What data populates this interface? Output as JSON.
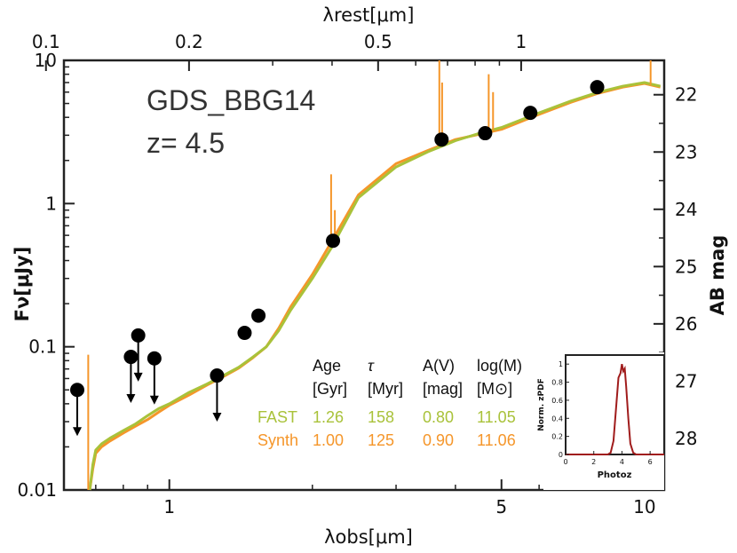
{
  "colors": {
    "fast": "#a9c23a",
    "synth": "#f5962a",
    "points": "#000000",
    "pdf": "#a01c1c",
    "frame": "#222222"
  },
  "main": {
    "name_label": "GDS_BBG14",
    "redshift_label": "z= 4.5"
  },
  "chart_data": [
    {
      "type": "line",
      "title": "",
      "xlabel": "λobs[μm]",
      "ylabel": "Fν[μJy]",
      "top_xlabel": "λrest[μm]",
      "right_ylabel": "AB mag",
      "xscale": "log",
      "yscale": "log",
      "xlim": [
        0.6,
        11
      ],
      "ylim": [
        0.01,
        10
      ],
      "x_ticks": [
        {
          "v": 1,
          "label": "1"
        },
        {
          "v": 5,
          "label": "5"
        },
        {
          "v": 10,
          "label": "10"
        }
      ],
      "y_ticks": [
        {
          "v": 0.01,
          "label": "0.01"
        },
        {
          "v": 0.1,
          "label": "0.1"
        },
        {
          "v": 1,
          "label": "1"
        },
        {
          "v": 10,
          "label": "10"
        }
      ],
      "top_ticks": [
        {
          "v": 0.1,
          "label": "0.1"
        },
        {
          "v": 0.2,
          "label": "0.2"
        },
        {
          "v": 0.5,
          "label": "0.5"
        },
        {
          "v": 1,
          "label": "1"
        }
      ],
      "right_ticks": [
        {
          "v": 22,
          "label": "22"
        },
        {
          "v": 23,
          "label": "23"
        },
        {
          "v": 24,
          "label": "24"
        },
        {
          "v": 25,
          "label": "25"
        },
        {
          "v": 26,
          "label": "26"
        },
        {
          "v": 27,
          "label": "27"
        },
        {
          "v": 28,
          "label": "28"
        }
      ],
      "rest_factor": 5.5,
      "series": [
        {
          "name": "FAST",
          "x": [
            0.68,
            0.69,
            0.7,
            0.72,
            0.75,
            0.8,
            0.85,
            0.9,
            0.95,
            1.0,
            1.1,
            1.2,
            1.3,
            1.4,
            1.5,
            1.6,
            1.7,
            1.8,
            2.0,
            2.2,
            2.5,
            3.0,
            3.5,
            4.0,
            4.5,
            5.0,
            6.0,
            7.0,
            8.0,
            9.0,
            10.0,
            10.8
          ],
          "y": [
            0.01,
            0.015,
            0.019,
            0.021,
            0.023,
            0.026,
            0.029,
            0.033,
            0.037,
            0.04,
            0.048,
            0.055,
            0.063,
            0.072,
            0.085,
            0.1,
            0.13,
            0.18,
            0.3,
            0.5,
            1.1,
            1.8,
            2.3,
            2.75,
            3.1,
            3.4,
            4.3,
            5.2,
            6.0,
            6.6,
            7.0,
            6.6
          ]
        },
        {
          "name": "Synth",
          "x": [
            0.68,
            0.69,
            0.7,
            0.72,
            0.75,
            0.8,
            0.85,
            0.9,
            0.95,
            1.0,
            1.1,
            1.2,
            1.3,
            1.4,
            1.5,
            1.6,
            1.7,
            1.8,
            2.0,
            2.2,
            2.5,
            3.0,
            3.5,
            4.0,
            4.5,
            5.0,
            6.0,
            7.0,
            8.0,
            9.0,
            10.0,
            10.8
          ],
          "y": [
            0.01,
            0.014,
            0.018,
            0.02,
            0.022,
            0.025,
            0.028,
            0.031,
            0.035,
            0.039,
            0.046,
            0.054,
            0.062,
            0.071,
            0.084,
            0.1,
            0.135,
            0.19,
            0.32,
            0.55,
            1.15,
            1.9,
            2.35,
            2.8,
            3.05,
            3.3,
            4.2,
            5.1,
            5.9,
            6.5,
            6.9,
            6.5
          ]
        }
      ],
      "synth_lines": [
        {
          "x": 0.675,
          "peak": 0.088
        },
        {
          "x": 2.19,
          "peak": 1.6
        },
        {
          "x": 2.23,
          "peak": 0.9
        },
        {
          "x": 3.7,
          "peak": 10
        },
        {
          "x": 3.75,
          "peak": 7
        },
        {
          "x": 4.7,
          "peak": 8
        },
        {
          "x": 4.8,
          "peak": 6
        },
        {
          "x": 10.3,
          "peak": 10
        }
      ],
      "detections": [
        {
          "x": 1.44,
          "y": 0.125
        },
        {
          "x": 1.54,
          "y": 0.165
        },
        {
          "x": 2.21,
          "y": 0.55
        },
        {
          "x": 3.74,
          "y": 2.8
        },
        {
          "x": 4.62,
          "y": 3.1
        },
        {
          "x": 5.75,
          "y": 4.3
        },
        {
          "x": 7.95,
          "y": 6.5
        }
      ],
      "upper_limits": [
        {
          "x": 0.64,
          "y": 0.05
        },
        {
          "x": 0.83,
          "y": 0.085
        },
        {
          "x": 0.86,
          "y": 0.12
        },
        {
          "x": 0.93,
          "y": 0.083
        },
        {
          "x": 1.26,
          "y": 0.063
        }
      ],
      "legend_table": {
        "headers": [
          "Age",
          "τ",
          "A(V)",
          "log(M)"
        ],
        "units": [
          "[Gyr]",
          "[Myr]",
          "[mag]",
          "[M⊙]"
        ],
        "rows": [
          {
            "label": "FAST",
            "values": [
              "1.26",
              "158",
              "0.80",
              "11.05"
            ]
          },
          {
            "label": "Synth",
            "values": [
              "1.00",
              "125",
              "0.90",
              "11.06"
            ]
          }
        ]
      }
    },
    {
      "type": "line",
      "title": "",
      "xlabel": "Photoz",
      "ylabel": "Norm. zPDF",
      "xlim": [
        0,
        7
      ],
      "ylim": [
        0,
        1.1
      ],
      "x_ticks": [
        {
          "v": 0,
          "label": "0"
        },
        {
          "v": 2,
          "label": "2"
        },
        {
          "v": 4,
          "label": "4"
        },
        {
          "v": 6,
          "label": "6"
        }
      ],
      "y_ticks": [
        {
          "v": 0,
          "label": "0"
        },
        {
          "v": 0.2,
          "label": "0.2"
        },
        {
          "v": 0.4,
          "label": "0.4"
        },
        {
          "v": 0.6,
          "label": "0.6"
        },
        {
          "v": 0.8,
          "label": "0.8"
        },
        {
          "v": 1,
          "label": "1"
        }
      ],
      "series": [
        {
          "name": "zPDF",
          "x": [
            0,
            3.0,
            3.2,
            3.4,
            3.6,
            3.75,
            3.9,
            4.0,
            4.1,
            4.2,
            4.3,
            4.45,
            4.6,
            4.8,
            5.0,
            7.0
          ],
          "y": [
            0,
            0,
            0.02,
            0.15,
            0.55,
            0.85,
            0.9,
            1.0,
            0.92,
            0.95,
            0.75,
            0.4,
            0.12,
            0.02,
            0,
            0
          ]
        }
      ]
    }
  ]
}
